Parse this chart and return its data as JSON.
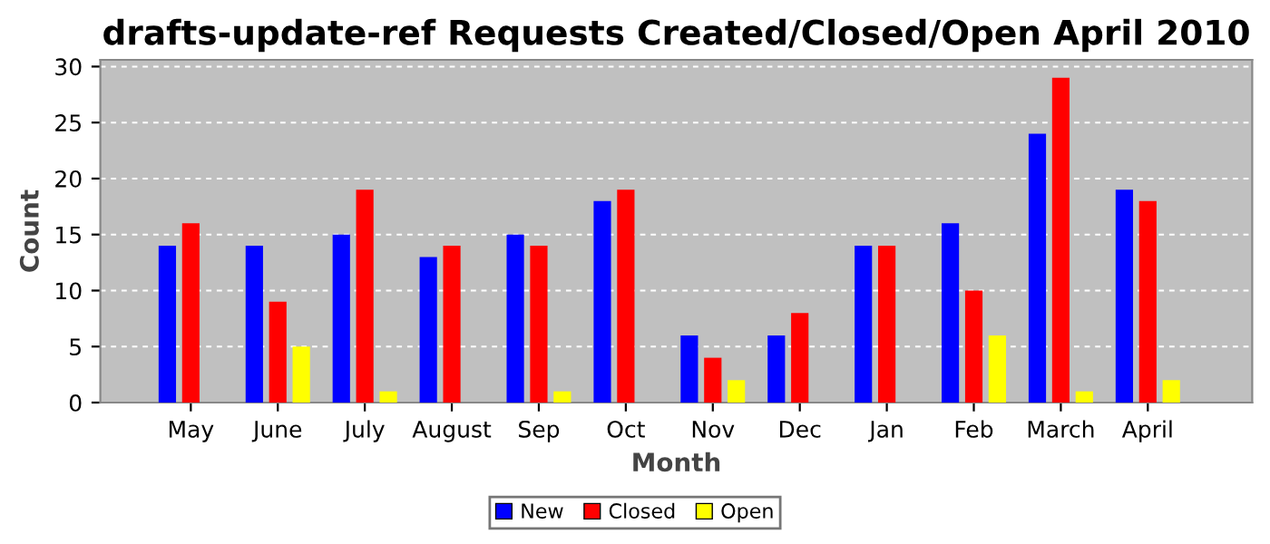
{
  "chart_data": {
    "type": "bar",
    "title": "drafts-update-ref Requests Created/Closed/Open April 2010",
    "xlabel": "Month",
    "ylabel": "Count",
    "categories": [
      "May",
      "June",
      "July",
      "August",
      "Sep",
      "Oct",
      "Nov",
      "Dec",
      "Jan",
      "Feb",
      "March",
      "April"
    ],
    "series": [
      {
        "name": "New",
        "color": "#0000ff",
        "values": [
          14,
          14,
          15,
          13,
          15,
          18,
          6,
          6,
          14,
          16,
          24,
          19
        ]
      },
      {
        "name": "Closed",
        "color": "#ff0000",
        "values": [
          16,
          9,
          19,
          14,
          14,
          19,
          4,
          8,
          14,
          10,
          29,
          18
        ]
      },
      {
        "name": "Open",
        "color": "#ffff00",
        "values": [
          0,
          5,
          1,
          0,
          1,
          0,
          2,
          0,
          0,
          6,
          1,
          2
        ]
      }
    ],
    "ylim": [
      0,
      30.6
    ],
    "yticks": [
      0,
      5,
      10,
      15,
      20,
      25,
      30
    ],
    "grid": "y",
    "legend": "bottom"
  }
}
